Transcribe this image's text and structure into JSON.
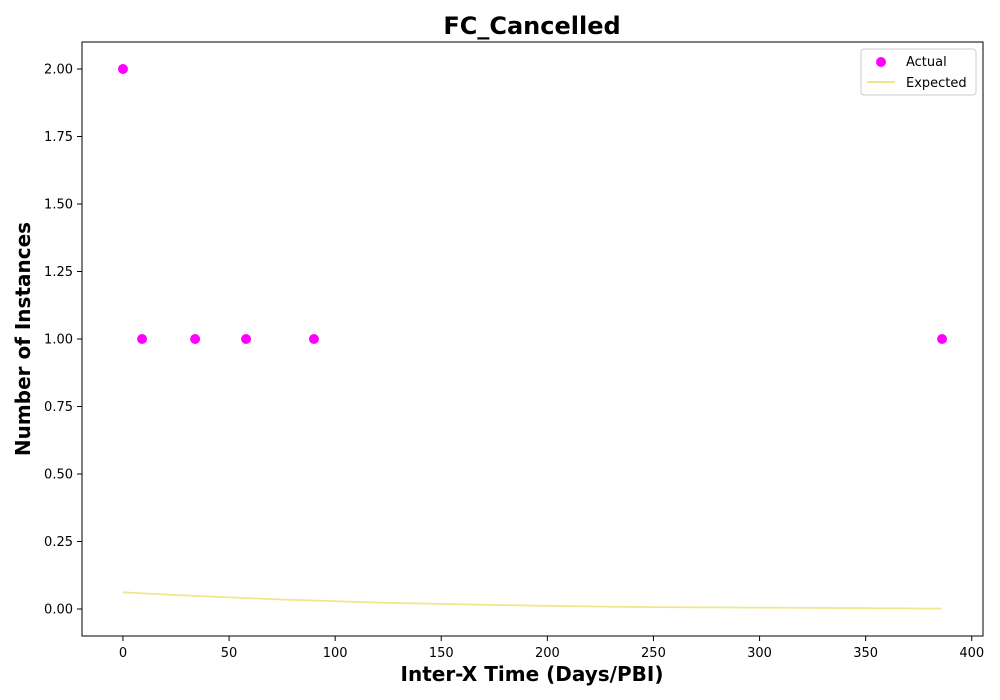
{
  "chart_data": {
    "type": "scatter",
    "title": "FC_Cancelled",
    "xlabel": "Inter-X Time (Days/PBI)",
    "ylabel": "Number of Instances",
    "xlim": [
      -19.3,
      405.3
    ],
    "ylim": [
      -0.1,
      2.1
    ],
    "xticks": [
      0,
      50,
      100,
      150,
      200,
      250,
      300,
      350,
      400
    ],
    "yticks": [
      0.0,
      0.25,
      0.5,
      0.75,
      1.0,
      1.25,
      1.5,
      1.75,
      2.0
    ],
    "xtick_labels": [
      "0",
      "50",
      "100",
      "150",
      "200",
      "250",
      "300",
      "350",
      "400"
    ],
    "ytick_labels": [
      "0.00",
      "0.25",
      "0.50",
      "0.75",
      "1.00",
      "1.25",
      "1.50",
      "1.75",
      "2.00"
    ],
    "grid": false,
    "legend_position": "top-right",
    "series": [
      {
        "name": "Actual",
        "kind": "scatter",
        "color": "#ff00ff",
        "points": [
          {
            "x": 0,
            "y": 2.0
          },
          {
            "x": 9,
            "y": 1.0
          },
          {
            "x": 34,
            "y": 1.0
          },
          {
            "x": 58,
            "y": 1.0
          },
          {
            "x": 90,
            "y": 1.0
          },
          {
            "x": 386,
            "y": 1.0
          }
        ]
      },
      {
        "name": "Expected",
        "kind": "line",
        "color": "#f0e68c",
        "points": [
          {
            "x": 0,
            "y": 0.062
          },
          {
            "x": 25,
            "y": 0.052
          },
          {
            "x": 50,
            "y": 0.043
          },
          {
            "x": 75,
            "y": 0.035
          },
          {
            "x": 100,
            "y": 0.029
          },
          {
            "x": 125,
            "y": 0.023
          },
          {
            "x": 150,
            "y": 0.019
          },
          {
            "x": 175,
            "y": 0.015
          },
          {
            "x": 200,
            "y": 0.012
          },
          {
            "x": 225,
            "y": 0.009
          },
          {
            "x": 250,
            "y": 0.007
          },
          {
            "x": 275,
            "y": 0.006
          },
          {
            "x": 300,
            "y": 0.005
          },
          {
            "x": 325,
            "y": 0.004
          },
          {
            "x": 350,
            "y": 0.003
          },
          {
            "x": 375,
            "y": 0.002
          },
          {
            "x": 386,
            "y": 0.002
          }
        ]
      }
    ]
  }
}
